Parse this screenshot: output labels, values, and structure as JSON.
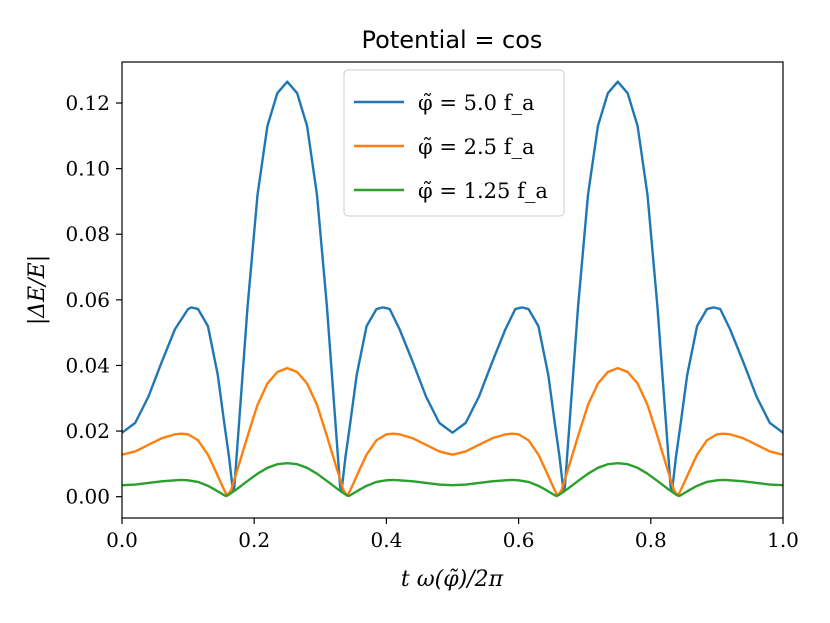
{
  "chart_data": {
    "type": "line",
    "title": "Potential = cos",
    "xlabel": "t ω(φ̃)/2π",
    "ylabel": "|ΔE/E|",
    "xlim": [
      0.0,
      1.0
    ],
    "ylim": [
      -0.0065,
      0.1325
    ],
    "xticks": [
      0.0,
      0.2,
      0.4,
      0.6,
      0.8,
      1.0
    ],
    "xtick_labels": [
      "0.0",
      "0.2",
      "0.4",
      "0.6",
      "0.8",
      "1.0"
    ],
    "yticks": [
      0.0,
      0.02,
      0.04,
      0.06,
      0.08,
      0.1,
      0.12
    ],
    "ytick_labels": [
      "0.00",
      "0.02",
      "0.04",
      "0.06",
      "0.08",
      "0.10",
      "0.12"
    ],
    "legend_position": "top-center",
    "series": [
      {
        "name": "φ̃ = 5.0 f_a",
        "color": "#1f77b4",
        "points": [
          [
            0.0,
            0.0195
          ],
          [
            0.02,
            0.0225
          ],
          [
            0.04,
            0.0305
          ],
          [
            0.06,
            0.041
          ],
          [
            0.08,
            0.051
          ],
          [
            0.1,
            0.0572
          ],
          [
            0.105,
            0.0577
          ],
          [
            0.115,
            0.0572
          ],
          [
            0.13,
            0.052
          ],
          [
            0.145,
            0.037
          ],
          [
            0.155,
            0.022
          ],
          [
            0.162,
            0.012
          ],
          [
            0.168,
            0.0015
          ],
          [
            0.17,
            0.003
          ],
          [
            0.178,
            0.025
          ],
          [
            0.19,
            0.058
          ],
          [
            0.205,
            0.092
          ],
          [
            0.22,
            0.113
          ],
          [
            0.235,
            0.123
          ],
          [
            0.25,
            0.1265
          ],
          [
            0.265,
            0.123
          ],
          [
            0.28,
            0.113
          ],
          [
            0.295,
            0.092
          ],
          [
            0.31,
            0.058
          ],
          [
            0.322,
            0.025
          ],
          [
            0.33,
            0.003
          ],
          [
            0.332,
            0.0015
          ],
          [
            0.338,
            0.012
          ],
          [
            0.345,
            0.022
          ],
          [
            0.355,
            0.037
          ],
          [
            0.37,
            0.052
          ],
          [
            0.385,
            0.0572
          ],
          [
            0.395,
            0.0577
          ],
          [
            0.405,
            0.0572
          ],
          [
            0.42,
            0.051
          ],
          [
            0.44,
            0.041
          ],
          [
            0.46,
            0.0305
          ],
          [
            0.48,
            0.0225
          ],
          [
            0.5,
            0.0195
          ],
          [
            0.52,
            0.0225
          ],
          [
            0.54,
            0.0305
          ],
          [
            0.56,
            0.041
          ],
          [
            0.58,
            0.051
          ],
          [
            0.595,
            0.0572
          ],
          [
            0.605,
            0.0577
          ],
          [
            0.615,
            0.0572
          ],
          [
            0.63,
            0.052
          ],
          [
            0.645,
            0.037
          ],
          [
            0.655,
            0.022
          ],
          [
            0.662,
            0.012
          ],
          [
            0.668,
            0.0015
          ],
          [
            0.67,
            0.003
          ],
          [
            0.678,
            0.025
          ],
          [
            0.69,
            0.058
          ],
          [
            0.705,
            0.092
          ],
          [
            0.72,
            0.113
          ],
          [
            0.735,
            0.123
          ],
          [
            0.75,
            0.1265
          ],
          [
            0.765,
            0.123
          ],
          [
            0.78,
            0.113
          ],
          [
            0.795,
            0.092
          ],
          [
            0.81,
            0.058
          ],
          [
            0.822,
            0.025
          ],
          [
            0.83,
            0.003
          ],
          [
            0.832,
            0.0015
          ],
          [
            0.838,
            0.012
          ],
          [
            0.845,
            0.022
          ],
          [
            0.855,
            0.037
          ],
          [
            0.87,
            0.052
          ],
          [
            0.885,
            0.0572
          ],
          [
            0.895,
            0.0577
          ],
          [
            0.905,
            0.0572
          ],
          [
            0.92,
            0.051
          ],
          [
            0.94,
            0.041
          ],
          [
            0.96,
            0.0305
          ],
          [
            0.98,
            0.0225
          ],
          [
            1.0,
            0.0195
          ]
        ]
      },
      {
        "name": "φ̃ = 2.5 f_a",
        "color": "#ff7f0e",
        "points": [
          [
            0.0,
            0.0128
          ],
          [
            0.02,
            0.0138
          ],
          [
            0.04,
            0.0158
          ],
          [
            0.06,
            0.0178
          ],
          [
            0.08,
            0.019
          ],
          [
            0.09,
            0.0192
          ],
          [
            0.1,
            0.019
          ],
          [
            0.115,
            0.0172
          ],
          [
            0.13,
            0.0128
          ],
          [
            0.14,
            0.0085
          ],
          [
            0.15,
            0.004
          ],
          [
            0.157,
            0.001
          ],
          [
            0.16,
            0.0005
          ],
          [
            0.165,
            0.002
          ],
          [
            0.175,
            0.0085
          ],
          [
            0.19,
            0.0185
          ],
          [
            0.205,
            0.028
          ],
          [
            0.22,
            0.0345
          ],
          [
            0.235,
            0.038
          ],
          [
            0.25,
            0.0392
          ],
          [
            0.265,
            0.038
          ],
          [
            0.28,
            0.0345
          ],
          [
            0.295,
            0.028
          ],
          [
            0.31,
            0.0185
          ],
          [
            0.325,
            0.0085
          ],
          [
            0.335,
            0.002
          ],
          [
            0.34,
            0.0005
          ],
          [
            0.343,
            0.001
          ],
          [
            0.35,
            0.004
          ],
          [
            0.36,
            0.0085
          ],
          [
            0.37,
            0.0128
          ],
          [
            0.385,
            0.0172
          ],
          [
            0.4,
            0.019
          ],
          [
            0.41,
            0.0192
          ],
          [
            0.42,
            0.019
          ],
          [
            0.44,
            0.0178
          ],
          [
            0.46,
            0.0158
          ],
          [
            0.48,
            0.0138
          ],
          [
            0.5,
            0.0128
          ],
          [
            0.52,
            0.0138
          ],
          [
            0.54,
            0.0158
          ],
          [
            0.56,
            0.0178
          ],
          [
            0.58,
            0.019
          ],
          [
            0.59,
            0.0192
          ],
          [
            0.6,
            0.019
          ],
          [
            0.615,
            0.0172
          ],
          [
            0.63,
            0.0128
          ],
          [
            0.64,
            0.0085
          ],
          [
            0.65,
            0.004
          ],
          [
            0.657,
            0.001
          ],
          [
            0.66,
            0.0005
          ],
          [
            0.665,
            0.002
          ],
          [
            0.675,
            0.0085
          ],
          [
            0.69,
            0.0185
          ],
          [
            0.705,
            0.028
          ],
          [
            0.72,
            0.0345
          ],
          [
            0.735,
            0.038
          ],
          [
            0.75,
            0.0392
          ],
          [
            0.765,
            0.038
          ],
          [
            0.78,
            0.0345
          ],
          [
            0.795,
            0.028
          ],
          [
            0.81,
            0.0185
          ],
          [
            0.825,
            0.0085
          ],
          [
            0.835,
            0.002
          ],
          [
            0.84,
            0.0005
          ],
          [
            0.843,
            0.001
          ],
          [
            0.85,
            0.004
          ],
          [
            0.86,
            0.0085
          ],
          [
            0.87,
            0.0128
          ],
          [
            0.885,
            0.0172
          ],
          [
            0.9,
            0.019
          ],
          [
            0.91,
            0.0192
          ],
          [
            0.92,
            0.019
          ],
          [
            0.94,
            0.0178
          ],
          [
            0.96,
            0.0158
          ],
          [
            0.98,
            0.0138
          ],
          [
            1.0,
            0.0128
          ]
        ]
      },
      {
        "name": "φ̃ = 1.25 f_a",
        "color": "#2ca02c",
        "points": [
          [
            0.0,
            0.0035
          ],
          [
            0.02,
            0.0037
          ],
          [
            0.04,
            0.0042
          ],
          [
            0.06,
            0.0047
          ],
          [
            0.08,
            0.005
          ],
          [
            0.09,
            0.0051
          ],
          [
            0.1,
            0.005
          ],
          [
            0.115,
            0.0045
          ],
          [
            0.13,
            0.0033
          ],
          [
            0.14,
            0.0022
          ],
          [
            0.15,
            0.001
          ],
          [
            0.155,
            0.0004
          ],
          [
            0.158,
            0.0002
          ],
          [
            0.163,
            0.0008
          ],
          [
            0.175,
            0.0025
          ],
          [
            0.19,
            0.0048
          ],
          [
            0.205,
            0.007
          ],
          [
            0.22,
            0.0088
          ],
          [
            0.235,
            0.0099
          ],
          [
            0.25,
            0.0102
          ],
          [
            0.265,
            0.0099
          ],
          [
            0.28,
            0.0088
          ],
          [
            0.295,
            0.007
          ],
          [
            0.31,
            0.0048
          ],
          [
            0.325,
            0.0025
          ],
          [
            0.337,
            0.0008
          ],
          [
            0.342,
            0.0002
          ],
          [
            0.345,
            0.0004
          ],
          [
            0.35,
            0.001
          ],
          [
            0.36,
            0.0022
          ],
          [
            0.37,
            0.0033
          ],
          [
            0.385,
            0.0045
          ],
          [
            0.4,
            0.005
          ],
          [
            0.41,
            0.0051
          ],
          [
            0.42,
            0.005
          ],
          [
            0.44,
            0.0047
          ],
          [
            0.46,
            0.0042
          ],
          [
            0.48,
            0.0037
          ],
          [
            0.5,
            0.0035
          ],
          [
            0.52,
            0.0037
          ],
          [
            0.54,
            0.0042
          ],
          [
            0.56,
            0.0047
          ],
          [
            0.58,
            0.005
          ],
          [
            0.59,
            0.0051
          ],
          [
            0.6,
            0.005
          ],
          [
            0.615,
            0.0045
          ],
          [
            0.63,
            0.0033
          ],
          [
            0.64,
            0.0022
          ],
          [
            0.65,
            0.001
          ],
          [
            0.655,
            0.0004
          ],
          [
            0.658,
            0.0002
          ],
          [
            0.663,
            0.0008
          ],
          [
            0.675,
            0.0025
          ],
          [
            0.69,
            0.0048
          ],
          [
            0.705,
            0.007
          ],
          [
            0.72,
            0.0088
          ],
          [
            0.735,
            0.0099
          ],
          [
            0.75,
            0.0102
          ],
          [
            0.765,
            0.0099
          ],
          [
            0.78,
            0.0088
          ],
          [
            0.795,
            0.007
          ],
          [
            0.81,
            0.0048
          ],
          [
            0.825,
            0.0025
          ],
          [
            0.837,
            0.0008
          ],
          [
            0.842,
            0.0002
          ],
          [
            0.845,
            0.0004
          ],
          [
            0.85,
            0.001
          ],
          [
            0.86,
            0.0022
          ],
          [
            0.87,
            0.0033
          ],
          [
            0.885,
            0.0045
          ],
          [
            0.9,
            0.005
          ],
          [
            0.91,
            0.0051
          ],
          [
            0.92,
            0.005
          ],
          [
            0.94,
            0.0047
          ],
          [
            0.96,
            0.0042
          ],
          [
            0.98,
            0.0037
          ],
          [
            1.0,
            0.0035
          ]
        ]
      }
    ]
  }
}
